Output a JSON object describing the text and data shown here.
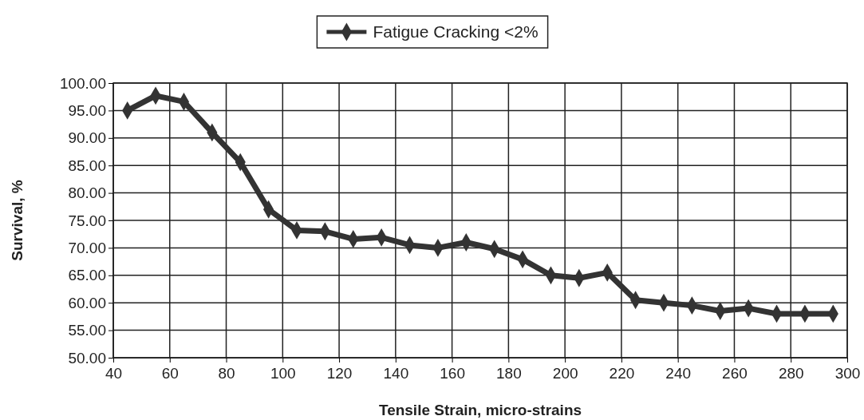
{
  "chart_data": {
    "type": "line",
    "xlabel": "Tensile Strain, micro-strains",
    "ylabel": "Survival, %",
    "x": [
      45,
      55,
      65,
      75,
      85,
      95,
      105,
      115,
      125,
      135,
      145,
      155,
      165,
      175,
      185,
      195,
      205,
      215,
      225,
      235,
      245,
      255,
      265,
      275,
      285,
      295
    ],
    "series": [
      {
        "name": "Fatigue Cracking <2%",
        "color": "#333333",
        "values": [
          95.0,
          97.7,
          96.6,
          91.0,
          85.6,
          77.0,
          73.2,
          73.0,
          71.6,
          71.9,
          70.5,
          70.0,
          71.0,
          69.8,
          67.9,
          65.0,
          64.5,
          65.5,
          60.5,
          60.0,
          59.5,
          58.5,
          59.0,
          58.0,
          58.0,
          58.0
        ]
      }
    ],
    "xlim": [
      40,
      300
    ],
    "xticks": [
      40,
      60,
      80,
      100,
      120,
      140,
      160,
      180,
      200,
      220,
      240,
      260,
      280,
      300
    ],
    "ylim": [
      50,
      100
    ],
    "yticks": [
      {
        "value": 50,
        "label": "50.00"
      },
      {
        "value": 55,
        "label": "55.00"
      },
      {
        "value": 60,
        "label": "60.00"
      },
      {
        "value": 65,
        "label": "65.00"
      },
      {
        "value": 70,
        "label": "70.00"
      },
      {
        "value": 75,
        "label": "75.00"
      },
      {
        "value": 80,
        "label": "80.00"
      },
      {
        "value": 85,
        "label": "85.00"
      },
      {
        "value": 90,
        "label": "90.00"
      },
      {
        "value": 95,
        "label": "95.00"
      },
      {
        "value": 100,
        "label": "100.00"
      }
    ],
    "grid": true,
    "legend": "top",
    "marker": "diamond",
    "line_style": "solid"
  }
}
